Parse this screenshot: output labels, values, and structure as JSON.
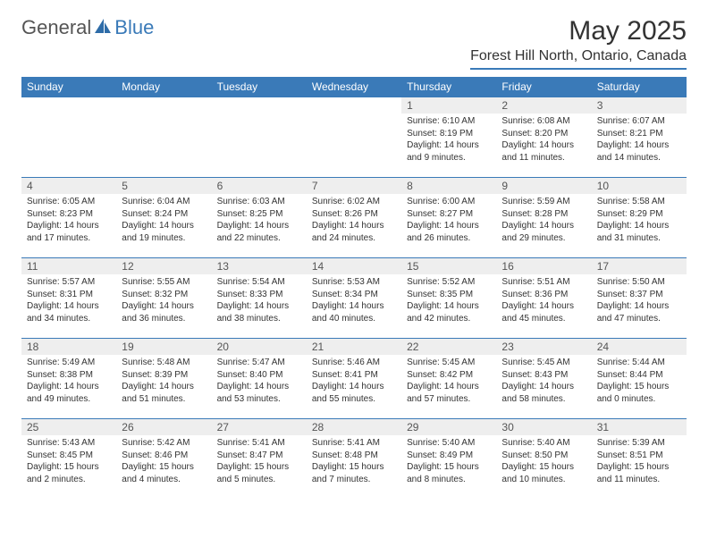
{
  "logo": {
    "text1": "General",
    "text2": "Blue"
  },
  "title": "May 2025",
  "location": "Forest Hill North, Ontario, Canada",
  "colors": {
    "header_bg": "#3a7ab8",
    "header_text": "#ffffff",
    "daynum_bg": "#eeeeee",
    "border": "#3a7ab8",
    "body_text": "#333333",
    "page_bg": "#ffffff"
  },
  "fonts": {
    "title_size": 30,
    "location_size": 16,
    "th_size": 12,
    "daynum_size": 12,
    "body_size": 10
  },
  "weekdays": [
    "Sunday",
    "Monday",
    "Tuesday",
    "Wednesday",
    "Thursday",
    "Friday",
    "Saturday"
  ],
  "leading_blanks": 4,
  "days": [
    {
      "n": 1,
      "sunrise": "6:10 AM",
      "sunset": "8:19 PM",
      "dl_h": 14,
      "dl_m": 9
    },
    {
      "n": 2,
      "sunrise": "6:08 AM",
      "sunset": "8:20 PM",
      "dl_h": 14,
      "dl_m": 11
    },
    {
      "n": 3,
      "sunrise": "6:07 AM",
      "sunset": "8:21 PM",
      "dl_h": 14,
      "dl_m": 14
    },
    {
      "n": 4,
      "sunrise": "6:05 AM",
      "sunset": "8:23 PM",
      "dl_h": 14,
      "dl_m": 17
    },
    {
      "n": 5,
      "sunrise": "6:04 AM",
      "sunset": "8:24 PM",
      "dl_h": 14,
      "dl_m": 19
    },
    {
      "n": 6,
      "sunrise": "6:03 AM",
      "sunset": "8:25 PM",
      "dl_h": 14,
      "dl_m": 22
    },
    {
      "n": 7,
      "sunrise": "6:02 AM",
      "sunset": "8:26 PM",
      "dl_h": 14,
      "dl_m": 24
    },
    {
      "n": 8,
      "sunrise": "6:00 AM",
      "sunset": "8:27 PM",
      "dl_h": 14,
      "dl_m": 26
    },
    {
      "n": 9,
      "sunrise": "5:59 AM",
      "sunset": "8:28 PM",
      "dl_h": 14,
      "dl_m": 29
    },
    {
      "n": 10,
      "sunrise": "5:58 AM",
      "sunset": "8:29 PM",
      "dl_h": 14,
      "dl_m": 31
    },
    {
      "n": 11,
      "sunrise": "5:57 AM",
      "sunset": "8:31 PM",
      "dl_h": 14,
      "dl_m": 34
    },
    {
      "n": 12,
      "sunrise": "5:55 AM",
      "sunset": "8:32 PM",
      "dl_h": 14,
      "dl_m": 36
    },
    {
      "n": 13,
      "sunrise": "5:54 AM",
      "sunset": "8:33 PM",
      "dl_h": 14,
      "dl_m": 38
    },
    {
      "n": 14,
      "sunrise": "5:53 AM",
      "sunset": "8:34 PM",
      "dl_h": 14,
      "dl_m": 40
    },
    {
      "n": 15,
      "sunrise": "5:52 AM",
      "sunset": "8:35 PM",
      "dl_h": 14,
      "dl_m": 42
    },
    {
      "n": 16,
      "sunrise": "5:51 AM",
      "sunset": "8:36 PM",
      "dl_h": 14,
      "dl_m": 45
    },
    {
      "n": 17,
      "sunrise": "5:50 AM",
      "sunset": "8:37 PM",
      "dl_h": 14,
      "dl_m": 47
    },
    {
      "n": 18,
      "sunrise": "5:49 AM",
      "sunset": "8:38 PM",
      "dl_h": 14,
      "dl_m": 49
    },
    {
      "n": 19,
      "sunrise": "5:48 AM",
      "sunset": "8:39 PM",
      "dl_h": 14,
      "dl_m": 51
    },
    {
      "n": 20,
      "sunrise": "5:47 AM",
      "sunset": "8:40 PM",
      "dl_h": 14,
      "dl_m": 53
    },
    {
      "n": 21,
      "sunrise": "5:46 AM",
      "sunset": "8:41 PM",
      "dl_h": 14,
      "dl_m": 55
    },
    {
      "n": 22,
      "sunrise": "5:45 AM",
      "sunset": "8:42 PM",
      "dl_h": 14,
      "dl_m": 57
    },
    {
      "n": 23,
      "sunrise": "5:45 AM",
      "sunset": "8:43 PM",
      "dl_h": 14,
      "dl_m": 58
    },
    {
      "n": 24,
      "sunrise": "5:44 AM",
      "sunset": "8:44 PM",
      "dl_h": 15,
      "dl_m": 0
    },
    {
      "n": 25,
      "sunrise": "5:43 AM",
      "sunset": "8:45 PM",
      "dl_h": 15,
      "dl_m": 2
    },
    {
      "n": 26,
      "sunrise": "5:42 AM",
      "sunset": "8:46 PM",
      "dl_h": 15,
      "dl_m": 4
    },
    {
      "n": 27,
      "sunrise": "5:41 AM",
      "sunset": "8:47 PM",
      "dl_h": 15,
      "dl_m": 5
    },
    {
      "n": 28,
      "sunrise": "5:41 AM",
      "sunset": "8:48 PM",
      "dl_h": 15,
      "dl_m": 7
    },
    {
      "n": 29,
      "sunrise": "5:40 AM",
      "sunset": "8:49 PM",
      "dl_h": 15,
      "dl_m": 8
    },
    {
      "n": 30,
      "sunrise": "5:40 AM",
      "sunset": "8:50 PM",
      "dl_h": 15,
      "dl_m": 10
    },
    {
      "n": 31,
      "sunrise": "5:39 AM",
      "sunset": "8:51 PM",
      "dl_h": 15,
      "dl_m": 11
    }
  ],
  "labels": {
    "sunrise": "Sunrise:",
    "sunset": "Sunset:",
    "daylight_prefix": "Daylight:",
    "hours_word": "hours",
    "and_word": "and",
    "minutes_word": "minutes."
  }
}
